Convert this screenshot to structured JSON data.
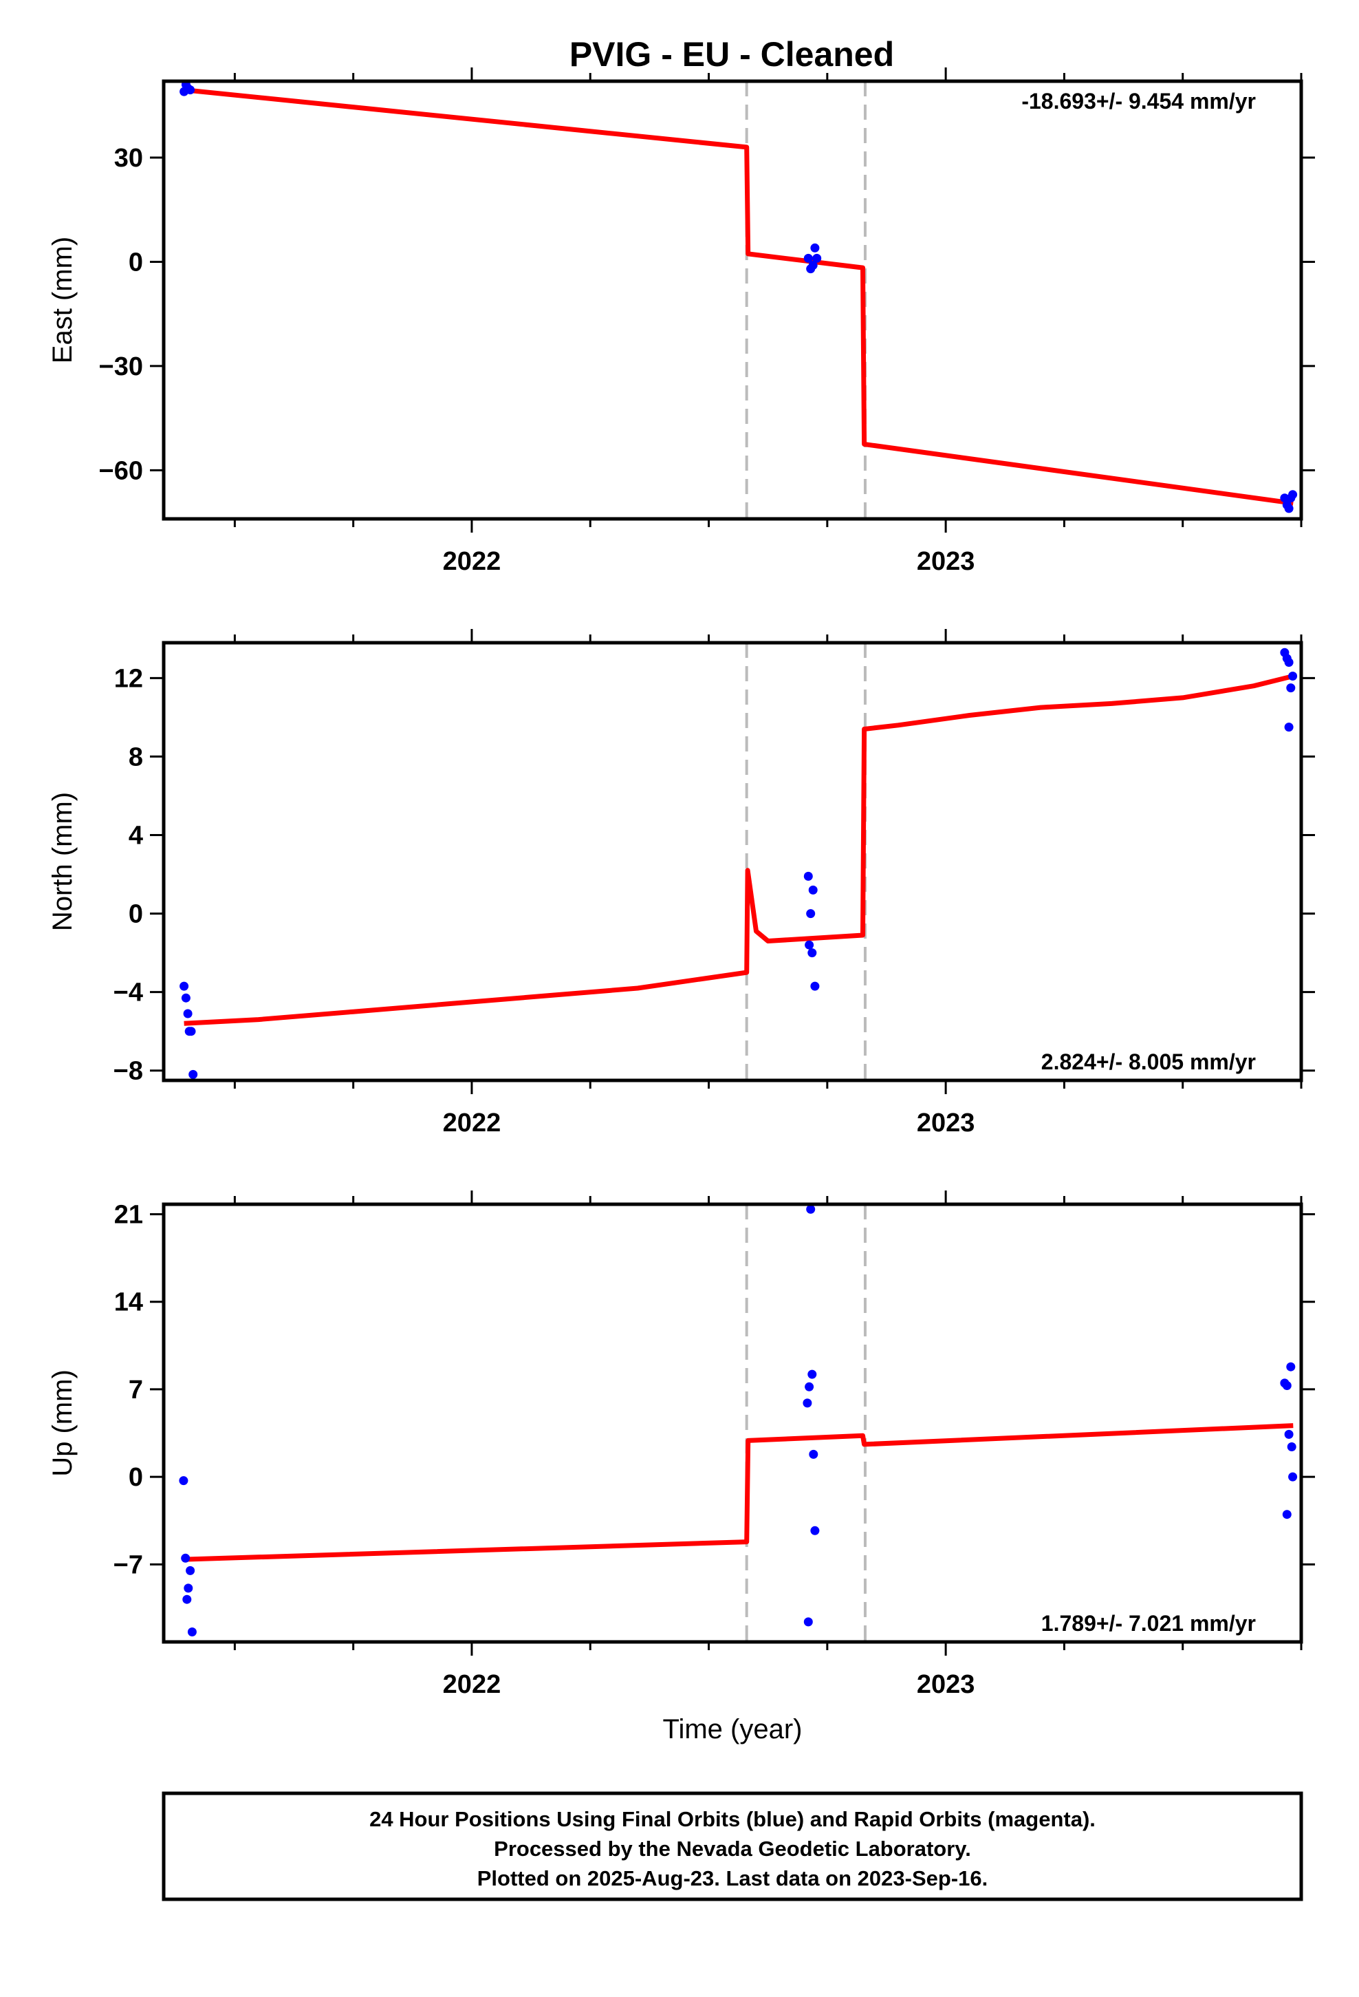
{
  "title": "PVIG  - EU - Cleaned",
  "colors": {
    "final_orbits": "#0000ff",
    "fit_line": "#ff0000",
    "event_lines": "#bbbbbb",
    "frame": "#000000"
  },
  "chart_data": [
    {
      "type": "scatter",
      "panel": "east",
      "ylabel": "East (mm)",
      "xlabel": "",
      "rate": "-18.693+/- 9.454 mm/yr",
      "xlim": [
        2021.35,
        2023.75
      ],
      "ylim": [
        -74,
        52
      ],
      "yticks": [
        30,
        0,
        -30,
        -60
      ],
      "ytick_labels": [
        "30",
        "0",
        "−30",
        "−60"
      ],
      "xticks": [
        2022,
        2023
      ],
      "xtick_labels": [
        "2022",
        "2023"
      ],
      "event_lines": [
        2022.58,
        2022.83
      ],
      "points": {
        "x": [
          2021.393,
          2021.397,
          2021.401,
          2021.406,
          2022.71,
          2022.715,
          2022.72,
          2022.724,
          2022.728,
          2023.715,
          2023.72,
          2023.724,
          2023.728,
          2023.732
        ],
        "y": [
          49,
          51,
          50,
          49.5,
          1,
          -2,
          -1,
          4,
          1,
          -68,
          -70,
          -71,
          -68,
          -67
        ]
      },
      "fit_line": {
        "x": [
          2021.393,
          2022.58,
          2022.583,
          2022.825,
          2022.828,
          2023.733
        ],
        "y": [
          49.5,
          33,
          2.3,
          -1.7,
          -52.5,
          -69.5
        ]
      }
    },
    {
      "type": "scatter",
      "panel": "north",
      "ylabel": "North (mm)",
      "xlabel": "",
      "rate": "2.824+/- 8.005 mm/yr",
      "xlim": [
        2021.35,
        2023.75
      ],
      "ylim": [
        -8.5,
        13.8
      ],
      "yticks": [
        12,
        8,
        4,
        0,
        -4,
        -8
      ],
      "ytick_labels": [
        "12",
        "8",
        "4",
        "0",
        "−4",
        "−8"
      ],
      "xticks": [
        2022,
        2023
      ],
      "xtick_labels": [
        "2022",
        "2023"
      ],
      "event_lines": [
        2022.58,
        2022.83
      ],
      "points": {
        "x": [
          2021.393,
          2021.397,
          2021.401,
          2021.404,
          2021.408,
          2021.412,
          2022.71,
          2022.712,
          2022.715,
          2022.718,
          2022.72,
          2022.724,
          2023.715,
          2023.72,
          2023.724,
          2023.728,
          2023.732,
          2023.724
        ],
        "y": [
          -3.7,
          -4.3,
          -5.1,
          -6.0,
          -6.0,
          -8.2,
          1.9,
          -1.6,
          0.0,
          -2.0,
          1.2,
          -3.7,
          13.3,
          13.0,
          12.8,
          11.5,
          12.1,
          9.5
        ]
      },
      "fit_line": {
        "x": [
          2021.393,
          2021.55,
          2021.75,
          2021.95,
          2022.15,
          2022.35,
          2022.58,
          2022.582,
          2022.6,
          2022.625,
          2022.825,
          2022.828,
          2022.9,
          2023.05,
          2023.2,
          2023.35,
          2023.5,
          2023.65,
          2023.733
        ],
        "y": [
          -5.6,
          -5.4,
          -5.0,
          -4.6,
          -4.2,
          -3.8,
          -3.0,
          2.2,
          -0.9,
          -1.4,
          -1.1,
          9.4,
          9.6,
          10.1,
          10.5,
          10.7,
          11.0,
          11.6,
          12.1
        ]
      }
    },
    {
      "type": "scatter",
      "panel": "up",
      "ylabel": "Up (mm)",
      "xlabel": "Time (year)",
      "rate": "1.789+/- 7.021 mm/yr",
      "xlim": [
        2021.35,
        2023.75
      ],
      "ylim": [
        -13.2,
        21.8
      ],
      "yticks": [
        21,
        14,
        7,
        0,
        -7
      ],
      "ytick_labels": [
        "21",
        "14",
        "7",
        "0",
        "−7"
      ],
      "xticks": [
        2022,
        2023
      ],
      "xtick_labels": [
        "2022",
        "2023"
      ],
      "event_lines": [
        2022.58,
        2022.83
      ],
      "points": {
        "x": [
          2021.392,
          2021.396,
          2021.399,
          2021.402,
          2021.406,
          2021.41,
          2022.708,
          2022.712,
          2022.715,
          2022.718,
          2022.721,
          2022.724,
          2022.71,
          2023.715,
          2023.72,
          2023.724,
          2023.728,
          2023.73,
          2023.732,
          2023.72
        ],
        "y": [
          -0.3,
          -6.5,
          -9.8,
          -8.9,
          -7.5,
          -12.4,
          5.9,
          7.2,
          21.4,
          8.2,
          1.8,
          -4.3,
          -11.6,
          7.5,
          7.3,
          3.4,
          8.8,
          2.4,
          0.0,
          -3.0
        ]
      },
      "fit_line": {
        "x": [
          2021.393,
          2022.58,
          2022.583,
          2022.825,
          2022.828,
          2023.733
        ],
        "y": [
          -6.6,
          -5.2,
          2.9,
          3.3,
          2.6,
          4.1
        ]
      }
    }
  ],
  "footer": {
    "line1": "24 Hour Positions Using Final Orbits (blue) and Rapid Orbits (magenta).",
    "line2": "Processed by the Nevada Geodetic Laboratory.",
    "line3": "Plotted on 2025-Aug-23. Last data on 2023-Sep-16."
  }
}
